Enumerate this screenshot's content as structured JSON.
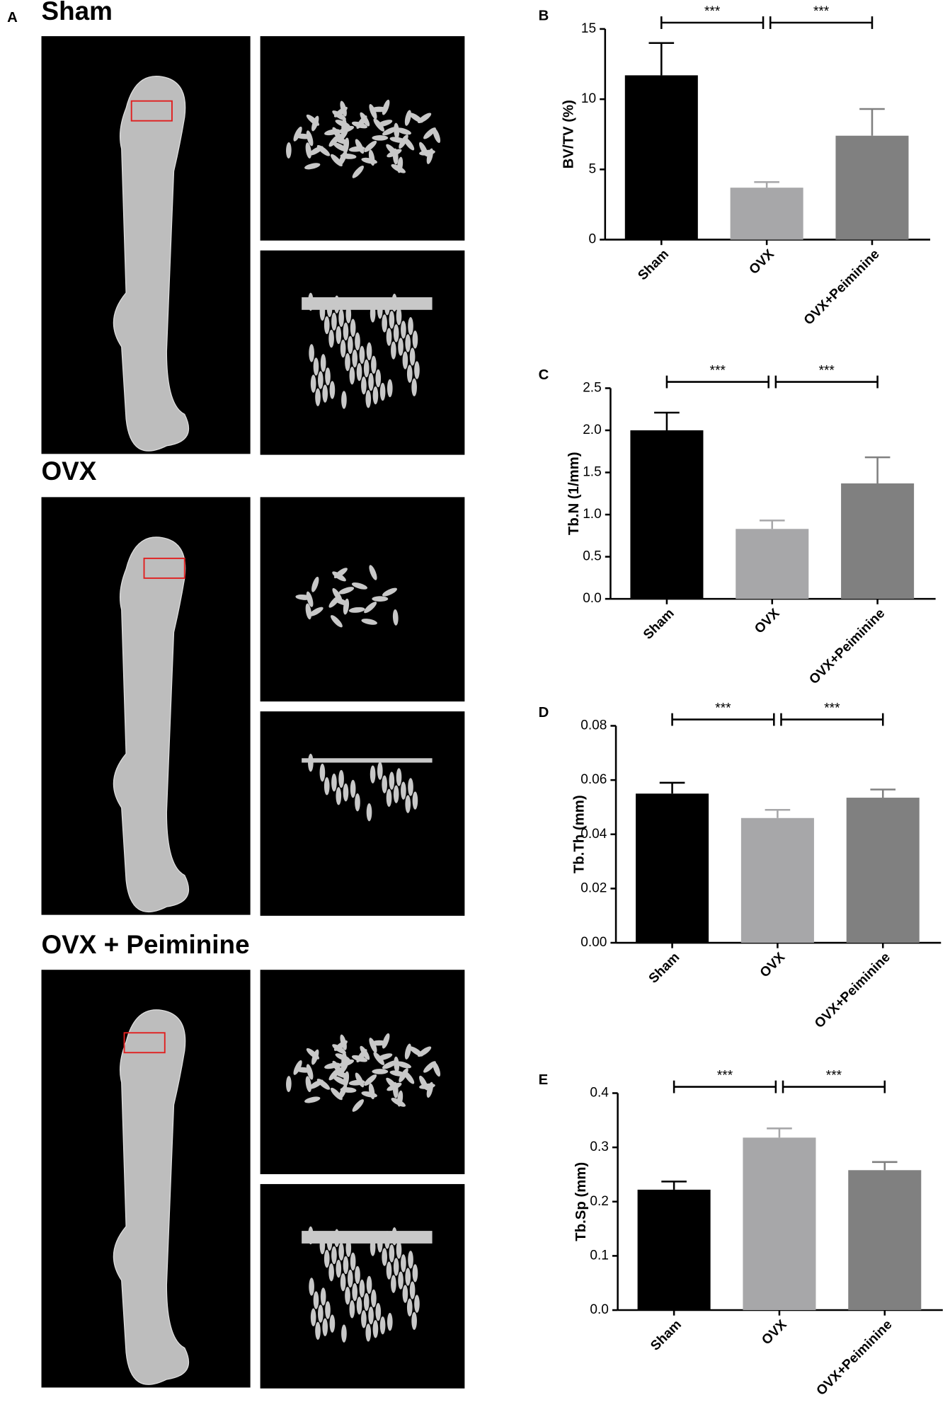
{
  "panel_a": {
    "label": "A",
    "groups": [
      "Sham",
      "OVX",
      "OVX + Peiminine"
    ]
  },
  "chart_data": [
    {
      "type": "bar",
      "panel": "B",
      "ylabel": "BV/TV (%)",
      "categories": [
        "Sham",
        "OVX",
        "OVX+Peiminine"
      ],
      "values": [
        11.7,
        3.7,
        7.4
      ],
      "errors": [
        2.3,
        0.4,
        1.9
      ],
      "colors": [
        "#000000",
        "#a7a7a9",
        "#808080"
      ],
      "ylim": [
        0,
        15
      ],
      "yticks": [
        0,
        5,
        10,
        15
      ],
      "annotations": [
        "***",
        "***"
      ]
    },
    {
      "type": "bar",
      "panel": "C",
      "ylabel": "Tb.N (1/mm)",
      "categories": [
        "Sham",
        "OVX",
        "OVX+Peiminine"
      ],
      "values": [
        2.0,
        0.83,
        1.37
      ],
      "errors": [
        0.21,
        0.1,
        0.31
      ],
      "colors": [
        "#000000",
        "#a7a7a9",
        "#808080"
      ],
      "ylim": [
        0,
        2.5
      ],
      "yticks": [
        {
          "value": 0,
          "label": "0.0"
        },
        0.5,
        {
          "value": 1,
          "label": "1.0"
        },
        1.5,
        {
          "value": 2,
          "label": "2.0"
        },
        2.5
      ],
      "annotations": [
        "***",
        "***"
      ]
    },
    {
      "type": "bar",
      "panel": "D",
      "ylabel": "Tb.Th (mm)",
      "categories": [
        "Sham",
        "OVX",
        "OVX+Peiminine"
      ],
      "values": [
        0.055,
        0.046,
        0.0535
      ],
      "errors": [
        0.004,
        0.003,
        0.003
      ],
      "colors": [
        "#000000",
        "#a7a7a9",
        "#808080"
      ],
      "ylim": [
        0,
        0.08
      ],
      "yticks": [
        {
          "value": 0,
          "label": "0.00"
        },
        0.02,
        0.04,
        0.06,
        0.08
      ],
      "annotations": [
        "***",
        "***"
      ]
    },
    {
      "type": "bar",
      "panel": "E",
      "ylabel": "Tb.Sp (mm)",
      "categories": [
        "Sham",
        "OVX",
        "OVX+Peiminine"
      ],
      "values": [
        0.222,
        0.318,
        0.258
      ],
      "errors": [
        0.015,
        0.017,
        0.015
      ],
      "colors": [
        "#000000",
        "#a7a7a9",
        "#808080"
      ],
      "ylim": [
        0,
        0.4
      ],
      "yticks": [
        {
          "value": 0,
          "label": "0.0"
        },
        0.1,
        0.2,
        0.3,
        0.4
      ],
      "annotations": [
        "***",
        "***"
      ]
    }
  ]
}
